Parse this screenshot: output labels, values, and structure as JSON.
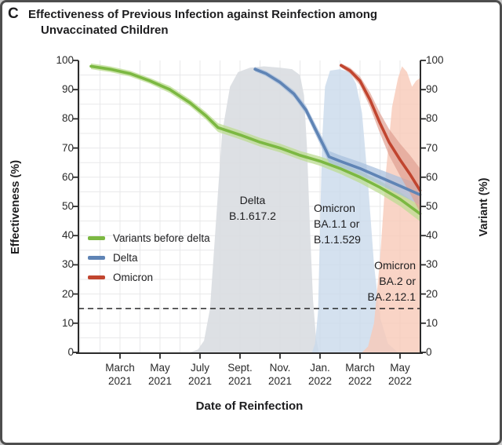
{
  "panel_label": "C",
  "title_line1": "Effectiveness of Previous Infection against Reinfection among",
  "title_line2": "Unvaccinated Children",
  "chart_data": {
    "type": "line",
    "title": "Effectiveness of Previous Infection against Reinfection among Unvaccinated Children",
    "xlabel": "Date of Reinfection",
    "ylabel_left": "Effectiveness (%)",
    "ylabel_right": "Variant (%)",
    "ylim": [
      0,
      100
    ],
    "x_domain": [
      "Jan 2021",
      "Jun 2022"
    ],
    "grid": true,
    "reference_line_y": 15,
    "y_ticks": [
      0,
      10,
      20,
      30,
      40,
      50,
      60,
      70,
      80,
      90,
      100
    ],
    "x_ticks": [
      {
        "t": 2,
        "month": "March",
        "year": "2021"
      },
      {
        "t": 4,
        "month": "May",
        "year": "2021"
      },
      {
        "t": 6,
        "month": "July",
        "year": "2021"
      },
      {
        "t": 8,
        "month": "Sept.",
        "year": "2021"
      },
      {
        "t": 10,
        "month": "Nov.",
        "year": "2021"
      },
      {
        "t": 12,
        "month": "Jan.",
        "year": "2022"
      },
      {
        "t": 14,
        "month": "March",
        "year": "2022"
      },
      {
        "t": 16,
        "month": "May",
        "year": "2022"
      }
    ],
    "legend": [
      {
        "label": "Variants before delta",
        "color": "#7cb842"
      },
      {
        "label": "Delta",
        "color": "#5f84b5"
      },
      {
        "label": "Omicron",
        "color": "#c1452f"
      }
    ],
    "annotations": {
      "delta": {
        "lines": [
          "Delta",
          "B.1.617.2"
        ]
      },
      "ba1": {
        "lines": [
          "Omicron",
          "BA.1.1 or",
          "B.1.1.529"
        ]
      },
      "ba2": {
        "lines": [
          "Omicron",
          "BA.2 or",
          "BA.2.12.1"
        ]
      }
    },
    "series": [
      {
        "name": "variants-before-delta-effectiveness",
        "axis": "left",
        "color": "#7cb842",
        "band_color": "#bcdc92",
        "band_opacity": 0.75,
        "t": [
          0.55,
          1.5,
          2.5,
          3.5,
          4.5,
          5.5,
          6.3,
          6.9,
          8,
          9,
          10,
          11,
          12,
          13,
          14,
          15,
          16,
          17
        ],
        "v": [
          98,
          97,
          95.5,
          93,
          90,
          85.5,
          81,
          77,
          74.5,
          72,
          70,
          67.5,
          65.5,
          63,
          60,
          56.5,
          52.5,
          47.5
        ],
        "w": [
          1,
          1,
          1,
          1,
          1.2,
          1.2,
          1.3,
          1.5,
          1.5,
          1.5,
          1.5,
          1.5,
          1.6,
          1.8,
          2,
          2.2,
          2.4,
          2.6
        ]
      },
      {
        "name": "delta-effectiveness",
        "axis": "left",
        "color": "#5f84b5",
        "band_color": "#a9c0dd",
        "band_opacity": 0.75,
        "t": [
          8.75,
          9.3,
          10,
          10.7,
          11.3,
          11.8,
          12.2,
          12.45,
          13,
          14,
          15,
          16,
          17
        ],
        "v": [
          97,
          95.5,
          92.5,
          88.5,
          83,
          76,
          70.5,
          67,
          65.5,
          63,
          60,
          57,
          54
        ],
        "w": [
          0.8,
          0.9,
          1,
          1.2,
          1.5,
          1.8,
          2,
          2,
          2,
          2.2,
          2.6,
          3,
          3.5
        ]
      },
      {
        "name": "omicron-effectiveness",
        "axis": "left",
        "color": "#c1452f",
        "band_color": "#e0a092",
        "band_opacity": 0.7,
        "t": [
          13.05,
          13.5,
          14,
          14.5,
          15,
          15.45,
          16,
          16.5,
          17
        ],
        "v": [
          98.3,
          96.5,
          93,
          86.5,
          78.5,
          72,
          66,
          61,
          55.5
        ],
        "w": [
          0.7,
          1,
          1.5,
          2.5,
          3.5,
          4.5,
          5.5,
          6.5,
          7.5
        ]
      }
    ],
    "variant_areas": [
      {
        "name": "delta-b16172-prevalence",
        "color": "#d9dde1",
        "opacity": 0.9,
        "t": [
          5.5,
          5.9,
          6.2,
          6.5,
          6.8,
          7.1,
          7.5,
          7.9,
          8.5,
          9.2,
          10,
          10.6,
          11.0,
          11.2,
          11.35,
          11.5,
          11.65,
          11.8,
          11.95
        ],
        "v": [
          0,
          1,
          4,
          15,
          45,
          75,
          91,
          96,
          97.5,
          98,
          97.5,
          97,
          95,
          88,
          70,
          42,
          18,
          5,
          0
        ]
      },
      {
        "name": "omicron-ba11-b11529-prevalence",
        "color": "#c9daeb",
        "opacity": 0.8,
        "t": [
          11.6,
          11.75,
          11.9,
          12.0,
          12.1,
          12.25,
          12.5,
          13.0,
          13.5,
          13.8,
          14.1,
          14.4,
          14.7,
          15.0,
          15.4,
          15.9
        ],
        "v": [
          0,
          3,
          14,
          42,
          72,
          91,
          96.5,
          97,
          96,
          92,
          82,
          58,
          30,
          12,
          3,
          0
        ]
      },
      {
        "name": "omicron-ba2-ba2121-prevalence",
        "color": "#f7c9b8",
        "opacity": 0.8,
        "t": [
          14.1,
          14.4,
          14.7,
          15.0,
          15.3,
          15.6,
          15.9,
          16.1,
          16.35,
          16.6,
          16.8,
          17.0
        ],
        "v": [
          0,
          2,
          10,
          32,
          62,
          84,
          94,
          98,
          96,
          91,
          93,
          94
        ]
      }
    ],
    "style": {
      "axis_color": "#2b2b2b",
      "grid_color": "#e8e8ea",
      "text_color": "#1d1d1f",
      "background": "#ffffff"
    }
  }
}
